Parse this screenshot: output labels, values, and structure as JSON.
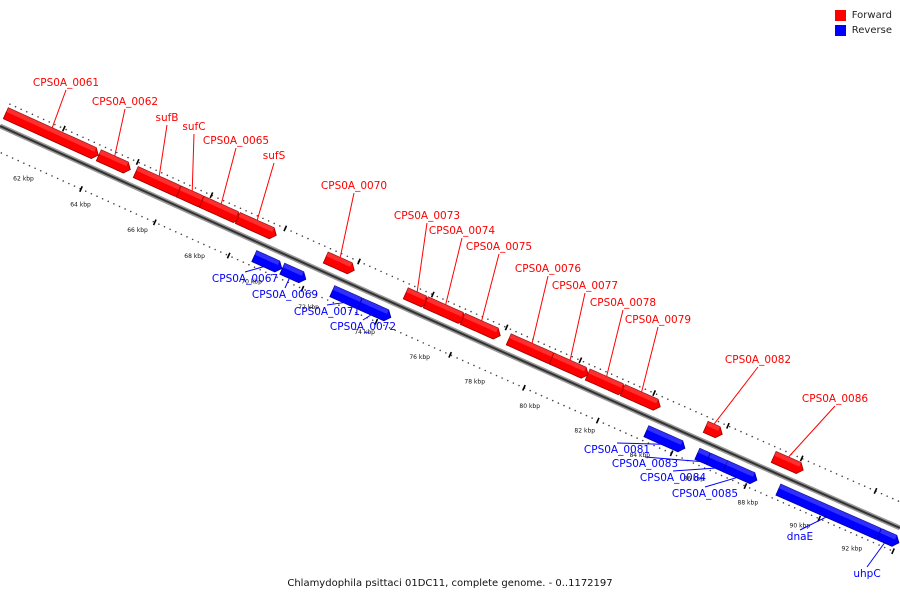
{
  "legend": {
    "forward_label": "Forward",
    "reverse_label": "Reverse",
    "forward_color": "#ff0000",
    "reverse_color": "#0000ff"
  },
  "caption": "Chlamydophila psittaci 01DC11, complete genome. - 0..1172197",
  "ticks": [
    "62 kbp",
    "64 kbp",
    "66 kbp",
    "68 kbp",
    "70 kbp",
    "72 kbp",
    "74 kbp",
    "76 kbp",
    "78 kbp",
    "80 kbp",
    "82 kbp",
    "84 kbp",
    "86 kbp",
    "88 kbp",
    "90 kbp",
    "92 kbp"
  ],
  "forward_genes": [
    "CPS0A_0061",
    "CPS0A_0062",
    "sufB",
    "sufC",
    "CPS0A_0065",
    "sufS",
    "CPS0A_0070",
    "CPS0A_0073",
    "CPS0A_0074",
    "CPS0A_0075",
    "CPS0A_0076",
    "CPS0A_0077",
    "CPS0A_0078",
    "CPS0A_0079",
    "CPS0A_0082",
    "CPS0A_0086"
  ],
  "reverse_genes": [
    "CPS0A_0067",
    "CPS0A_0069",
    "CPS0A_0071",
    "CPS0A_0072",
    "CPS0A_0081",
    "CPS0A_0083",
    "CPS0A_0084",
    "CPS0A_0085",
    "dnaE",
    "uhpC"
  ]
}
